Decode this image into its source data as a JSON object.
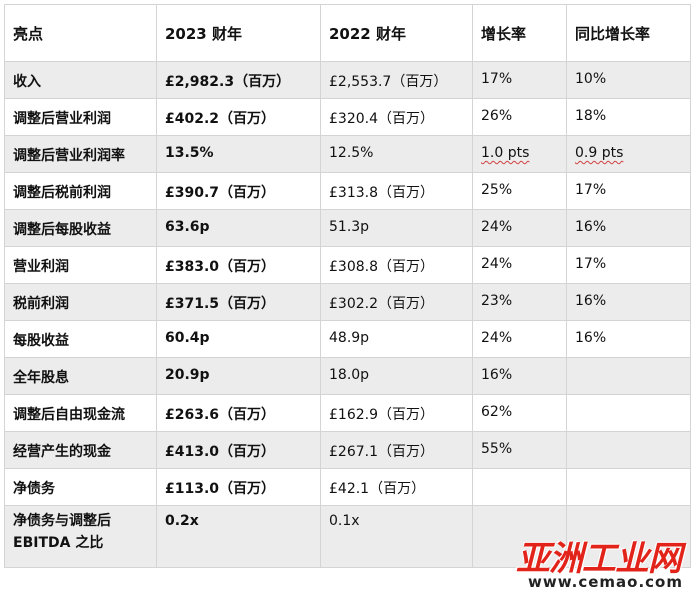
{
  "header": [
    "亮点",
    "2023 财年",
    "2022 财年",
    "增长率",
    "同比增长率"
  ],
  "rows": [
    {
      "label": "收入",
      "fy2023": "£2,982.3（百万）",
      "fy2022": "£2,553.7（百万）",
      "growth": "17%",
      "yoy": "10%"
    },
    {
      "label": "调整后营业利润",
      "fy2023": "£402.2（百万）",
      "fy2022": "£320.4（百万）",
      "growth": "26%",
      "yoy": "18%"
    },
    {
      "label": "调整后营业利润率",
      "fy2023": "13.5%",
      "fy2022": "12.5%",
      "growth": "1.0 pts",
      "yoy": "0.9 pts"
    },
    {
      "label": "调整后税前利润",
      "fy2023": "£390.7（百万）",
      "fy2022": "£313.8（百万）",
      "growth": "25%",
      "yoy": "17%"
    },
    {
      "label": "调整后每股收益",
      "fy2023": "63.6p",
      "fy2022": "51.3p",
      "growth": "24%",
      "yoy": "16%"
    },
    {
      "label": "营业利润",
      "fy2023": "£383.0（百万）",
      "fy2022": "£308.8（百万）",
      "growth": "24%",
      "yoy": "17%"
    },
    {
      "label": "税前利润",
      "fy2023": "£371.5（百万）",
      "fy2022": "£302.2（百万）",
      "growth": "23%",
      "yoy": "16%"
    },
    {
      "label": "每股收益",
      "fy2023": "60.4p",
      "fy2022": "48.9p",
      "growth": "24%",
      "yoy": "16%"
    },
    {
      "label": "全年股息",
      "fy2023": "20.9p",
      "fy2022": "18.0p",
      "growth": "16%",
      "yoy": ""
    },
    {
      "label": "调整后自由现金流",
      "fy2023": "£263.6（百万）",
      "fy2022": "£162.9（百万）",
      "growth": "62%",
      "yoy": ""
    },
    {
      "label": "经营产生的现金",
      "fy2023": "£413.0（百万）",
      "fy2022": "£267.1（百万）",
      "growth": "55%",
      "yoy": ""
    },
    {
      "label": "净债务",
      "fy2023": "£113.0（百万）",
      "fy2022": "£42.1（百万）",
      "growth": "",
      "yoy": ""
    },
    {
      "label": "净债务与调整后 EBITDA 之比",
      "fy2023": "0.2x",
      "fy2022": "0.1x",
      "growth": "",
      "yoy": ""
    }
  ],
  "watermark": {
    "title": "亚洲工业网",
    "url": "www.cemao.com"
  }
}
